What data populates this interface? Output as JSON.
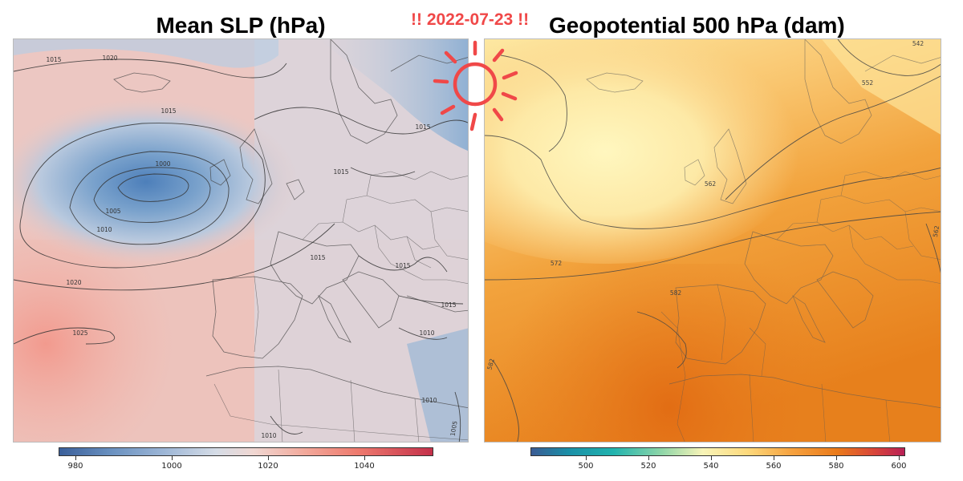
{
  "header": {
    "left_title": "Mean SLP (hPa)",
    "right_title": "Geopotential 500 hPa (dam)",
    "date_label": "!! 2022-07-23 !!"
  },
  "sun_icon": {
    "icon": "sun-icon",
    "color": "#f04848"
  },
  "left_map": {
    "variable": "Mean SLP",
    "units": "hPa",
    "colorbar": {
      "ticks": [
        "980",
        "1000",
        "1020",
        "1040"
      ],
      "colors": [
        "#3a5f9a",
        "#9db6d6",
        "#d5dce6",
        "#f2a89a",
        "#c4304a"
      ]
    },
    "contour_labels": [
      "1015",
      "1020",
      "1015",
      "1015",
      "1000",
      "1005",
      "1010",
      "1020",
      "1025",
      "1015",
      "1015",
      "1015",
      "1015",
      "1010",
      "1010",
      "1005",
      "1010"
    ]
  },
  "right_map": {
    "variable": "Geopotential 500 hPa",
    "units": "dam",
    "colorbar": {
      "ticks": [
        "500",
        "520",
        "540",
        "560",
        "580",
        "600"
      ],
      "colors": [
        "#3a5b94",
        "#21b3ae",
        "#f8f4b8",
        "#f6a13e",
        "#ea7a1a",
        "#b82056"
      ]
    },
    "contour_labels": [
      "542",
      "552",
      "562",
      "572",
      "582",
      "582",
      "562"
    ]
  }
}
